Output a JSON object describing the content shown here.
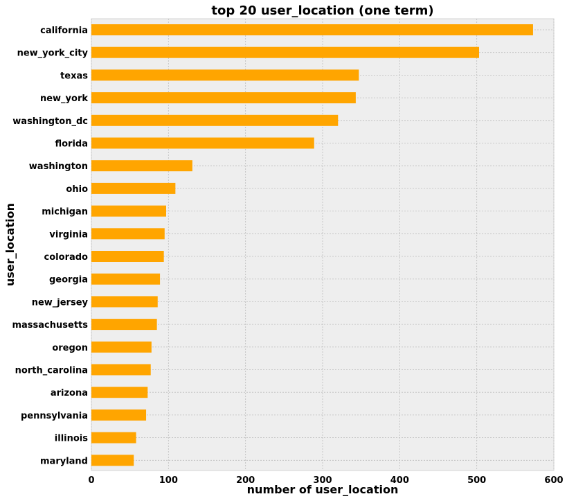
{
  "chart_data": {
    "type": "bar",
    "orientation": "horizontal",
    "title": "top 20 user_location (one term)",
    "xlabel": "number of user_location",
    "ylabel": "user_location",
    "xlim": [
      0,
      600
    ],
    "xticks": [
      0,
      100,
      200,
      300,
      400,
      500,
      600
    ],
    "grid": true,
    "bar_color": "#FFA500",
    "background_color": "#EEEEEE",
    "categories": [
      "california",
      "new_york_city",
      "texas",
      "new_york",
      "washington_dc",
      "florida",
      "washington",
      "ohio",
      "michigan",
      "virginia",
      "colorado",
      "georgia",
      "new_jersey",
      "massachusetts",
      "oregon",
      "north_carolina",
      "arizona",
      "pennsylvania",
      "illinois",
      "maryland"
    ],
    "values": [
      573,
      503,
      347,
      343,
      320,
      289,
      131,
      109,
      97,
      95,
      94,
      89,
      86,
      85,
      78,
      77,
      73,
      71,
      58,
      55
    ]
  }
}
